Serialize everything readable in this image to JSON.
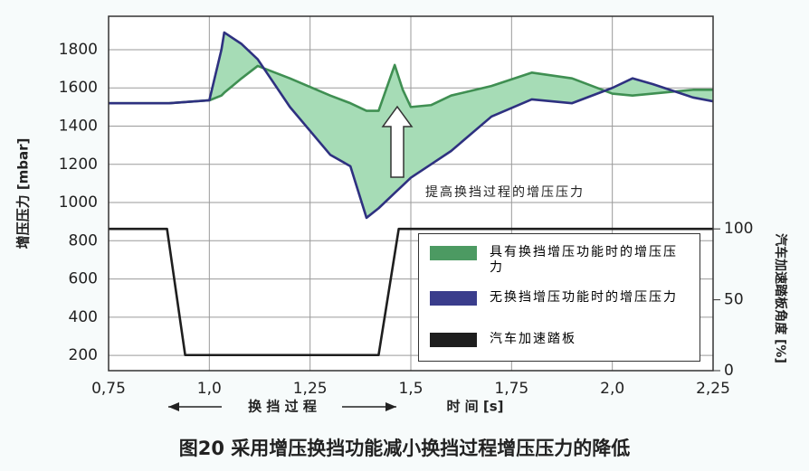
{
  "chart_data": {
    "type": "line",
    "title": "图20 采用增压换挡功能减小换挡过程增压压力的降低",
    "y_label": "增压压力 [mbar]",
    "y2_label": "汽车加速踏板角度 [%]",
    "x_label": "时 间 [s]",
    "annotations": [
      "提高换挡过程的增压压力",
      "换 挡 过 程"
    ],
    "x": [
      0.75,
      0.9,
      1.0,
      1.03,
      1.037,
      1.08,
      1.12,
      1.2,
      1.3,
      1.35,
      1.39,
      1.42,
      1.46,
      1.48,
      1.5,
      1.55,
      1.6,
      1.7,
      1.8,
      1.9,
      2.0,
      2.05,
      2.1,
      2.2,
      2.25
    ],
    "series": [
      {
        "name": "具有换挡增压功能时的增压压力",
        "color": "#3f8f52",
        "legend_color": "#4c9a62",
        "values": [
          1520,
          1520,
          1535,
          1560,
          1575,
          1650,
          1715,
          1650,
          1560,
          1520,
          1480,
          1480,
          1720,
          1590,
          1500,
          1510,
          1560,
          1610,
          1680,
          1650,
          1570,
          1560,
          1570,
          1590,
          1590
        ]
      },
      {
        "name": "无换挡增压功能时的增压压力",
        "color": "#2e3180",
        "legend_color": "#3a3d8c",
        "values": [
          1520,
          1520,
          1535,
          1800,
          1890,
          1830,
          1750,
          1500,
          1250,
          1190,
          920,
          970,
          1050,
          1090,
          1130,
          1200,
          1270,
          1450,
          1540,
          1520,
          1600,
          1650,
          1620,
          1550,
          1530
        ]
      },
      {
        "name": "汽车加速踏板",
        "color": "#1e1e1e",
        "legend_color": "#1e1e1e",
        "axis": "y2",
        "x": [
          0.75,
          0.895,
          0.94,
          1.42,
          1.47,
          2.25
        ],
        "values": [
          100,
          100,
          11,
          11,
          100,
          100
        ]
      }
    ],
    "fill_between_color": "#a6dcb6",
    "xlim": [
      0.75,
      2.25
    ],
    "xticks": [
      {
        "value": 0.75,
        "label": "0,75"
      },
      {
        "value": 1.0,
        "label": "1,0"
      },
      {
        "value": 1.25,
        "label": "1,25"
      },
      {
        "value": 1.5,
        "label": "1,5"
      },
      {
        "value": 1.75,
        "label": "1,75"
      },
      {
        "value": 2.0,
        "label": "2,0"
      },
      {
        "value": 2.25,
        "label": "2,25"
      }
    ],
    "ylim": [
      120,
      1975
    ],
    "yticks": [
      200,
      400,
      600,
      800,
      1000,
      1200,
      1400,
      1600,
      1800
    ],
    "y2lim": [
      0,
      250
    ],
    "y2ticks": [
      0,
      50,
      100
    ],
    "grid": true
  }
}
